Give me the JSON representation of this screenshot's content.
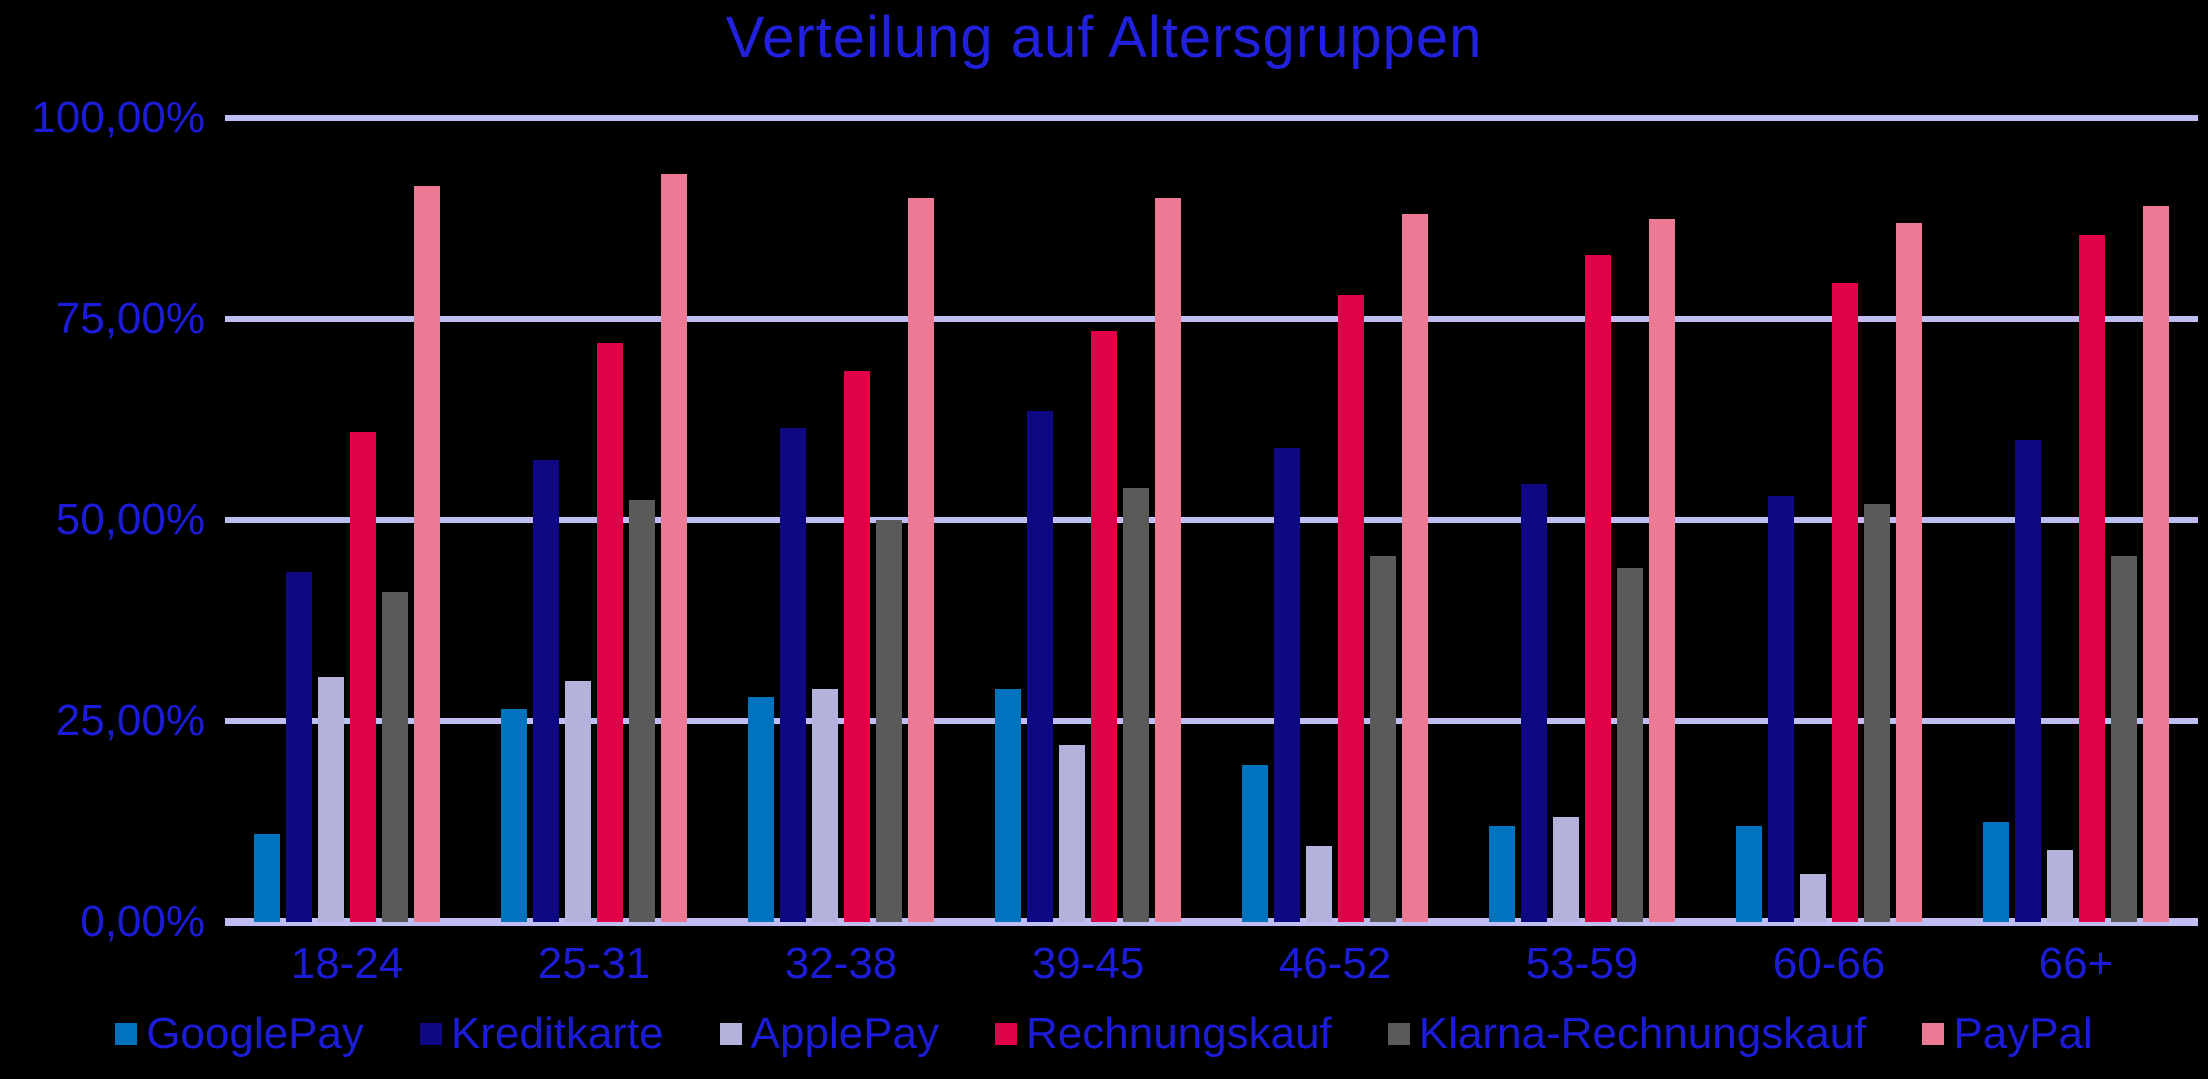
{
  "colors": {
    "background": "#000000",
    "title_text": "#2120dc",
    "axis_text": "#1c1cd8",
    "legend_text": "#1c1cd8",
    "gridline": "#bfbef2"
  },
  "chart_data": {
    "type": "bar",
    "title": "Verteilung auf Altersgruppen",
    "categories": [
      "18-24",
      "25-31",
      "32-38",
      "39-45",
      "46-52",
      "53-59",
      "60-66",
      "66+"
    ],
    "series": [
      {
        "name": "GooglePay",
        "color": "#0073bf",
        "values": [
          11,
          26.5,
          28,
          29,
          19.5,
          12,
          12,
          12.5
        ]
      },
      {
        "name": "Kreditkarte",
        "color": "#0e0882",
        "values": [
          43.5,
          57.5,
          61.5,
          63.5,
          59,
          54.5,
          53,
          60
        ]
      },
      {
        "name": "ApplePay",
        "color": "#b3b2dd",
        "values": [
          30.5,
          30,
          29,
          22,
          9.5,
          13,
          6,
          9
        ]
      },
      {
        "name": "Rechnungskauf",
        "color": "#df0047",
        "values": [
          61,
          72,
          68.5,
          73.5,
          78,
          83,
          79.5,
          85.5
        ]
      },
      {
        "name": "Klarna-Rechnungskauf",
        "color": "#5a5a5a",
        "values": [
          41,
          52.5,
          50,
          54,
          45.5,
          44,
          52,
          45.5
        ]
      },
      {
        "name": "PayPal",
        "color": "#ed7a95",
        "values": [
          91.5,
          93,
          90,
          90,
          88,
          87.5,
          87,
          89
        ]
      }
    ],
    "y_axis": {
      "ticks": [
        {
          "label": "100,00%",
          "value": 100
        },
        {
          "label": "75,00%",
          "value": 75
        },
        {
          "label": "50,00%",
          "value": 50
        },
        {
          "label": "25,00%",
          "value": 25
        },
        {
          "label": "0,00%",
          "value": 0
        }
      ]
    },
    "ylim": [
      0,
      100
    ],
    "grid": true,
    "legend_position": "bottom"
  }
}
